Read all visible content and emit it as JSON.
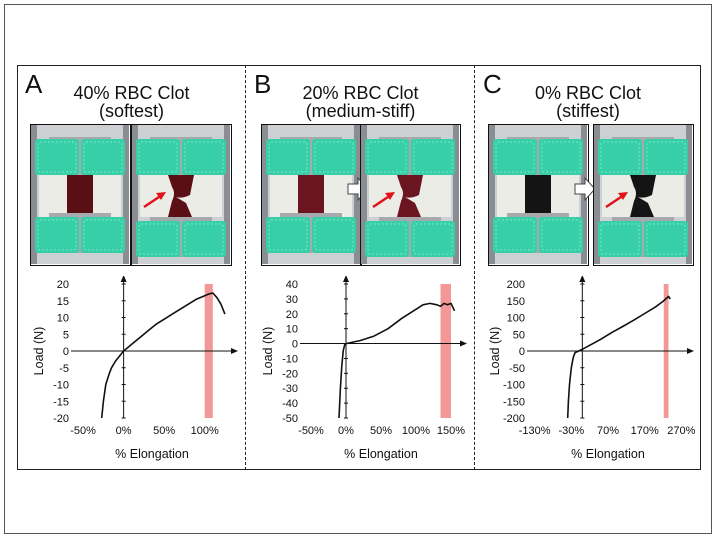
{
  "panels": [
    {
      "letter": "A",
      "title_line1": "40% RBC Clot",
      "title_line2": "(softest)",
      "clot_color": "#5a0f15"
    },
    {
      "letter": "B",
      "title_line1": "20% RBC Clot",
      "title_line2": "(medium-stiff)",
      "clot_color": "#6a1520"
    },
    {
      "letter": "C",
      "title_line1": "0% RBC Clot",
      "title_line2": "(stiffest)",
      "clot_color": "#141414"
    }
  ],
  "colors": {
    "foam": "#37cfa8",
    "failure_band": "#f28c8c",
    "marker_arrow": "#e0121b"
  },
  "chart_data": [
    {
      "type": "line",
      "xlabel": "% Elongation",
      "ylabel": "Load (N)",
      "xticks": [
        "-50%",
        "0%",
        "50%",
        "100%"
      ],
      "xtick_values": [
        -50,
        0,
        50,
        100
      ],
      "yticks": [
        "20",
        "15",
        "10",
        "5",
        "0",
        "-5",
        "-10",
        "-15",
        "-20"
      ],
      "ytick_values": [
        20,
        15,
        10,
        5,
        0,
        -5,
        -10,
        -15,
        -20
      ],
      "xlim": [
        -60,
        130
      ],
      "ylim": [
        -20,
        20
      ],
      "highlight_x": [
        100,
        110
      ],
      "series": [
        {
          "x": [
            -27,
            -25,
            -22,
            -18,
            -15,
            -10,
            -5,
            0,
            10,
            20,
            30,
            40,
            50,
            60,
            70,
            80,
            90,
            100,
            105,
            110,
            115,
            120,
            125
          ],
          "y": [
            -20,
            -15,
            -10,
            -7,
            -5,
            -3,
            -1.5,
            0,
            2,
            4,
            6,
            8,
            9.5,
            11,
            12.5,
            14,
            15.5,
            16.5,
            17,
            17.3,
            16,
            14,
            11
          ]
        }
      ]
    },
    {
      "type": "line",
      "xlabel": "% Elongation",
      "ylabel": "Load (N)",
      "xticks": [
        "-50%",
        "0%",
        "50%",
        "100%",
        "150%"
      ],
      "xtick_values": [
        -50,
        0,
        50,
        100,
        150
      ],
      "yticks": [
        "40",
        "30",
        "20",
        "10",
        "0",
        "-10",
        "-20",
        "-30",
        "-40",
        "-50"
      ],
      "ytick_values": [
        40,
        30,
        20,
        10,
        0,
        -10,
        -20,
        -30,
        -40,
        -50
      ],
      "xlim": [
        -60,
        160
      ],
      "ylim": [
        -50,
        40
      ],
      "highlight_x": [
        135,
        150
      ],
      "series": [
        {
          "x": [
            -10,
            -8,
            -6,
            -4,
            -2,
            0,
            10,
            20,
            40,
            60,
            80,
            100,
            110,
            120,
            130,
            135,
            140,
            145,
            150,
            155
          ],
          "y": [
            -50,
            -30,
            -15,
            -5,
            -1,
            0,
            1,
            2,
            5,
            10,
            17,
            23,
            26,
            27,
            26,
            25,
            27,
            26,
            27,
            22
          ]
        }
      ]
    },
    {
      "type": "line",
      "xlabel": "% Elongation",
      "ylabel": "Load (N)",
      "xticks": [
        "-130%",
        "-30%",
        "70%",
        "170%",
        "270%"
      ],
      "xtick_values": [
        -130,
        -30,
        70,
        170,
        270
      ],
      "yticks": [
        "200",
        "150",
        "100",
        "50",
        "0",
        "-50",
        "-100",
        "-150",
        "-200"
      ],
      "ytick_values": [
        200,
        150,
        100,
        50,
        0,
        -50,
        -100,
        -150,
        -200
      ],
      "xlim": [
        -140,
        280
      ],
      "ylim": [
        -200,
        200
      ],
      "highlight_x": [
        222,
        235
      ],
      "series": [
        {
          "x": [
            -40,
            -38,
            -35,
            -30,
            -25,
            -20,
            -10,
            0,
            20,
            50,
            80,
            110,
            140,
            170,
            200,
            220,
            230,
            235,
            240
          ],
          "y": [
            -200,
            -150,
            -100,
            -50,
            -20,
            -5,
            0,
            5,
            17,
            35,
            55,
            73,
            92,
            112,
            132,
            148,
            158,
            163,
            155
          ]
        }
      ]
    }
  ]
}
